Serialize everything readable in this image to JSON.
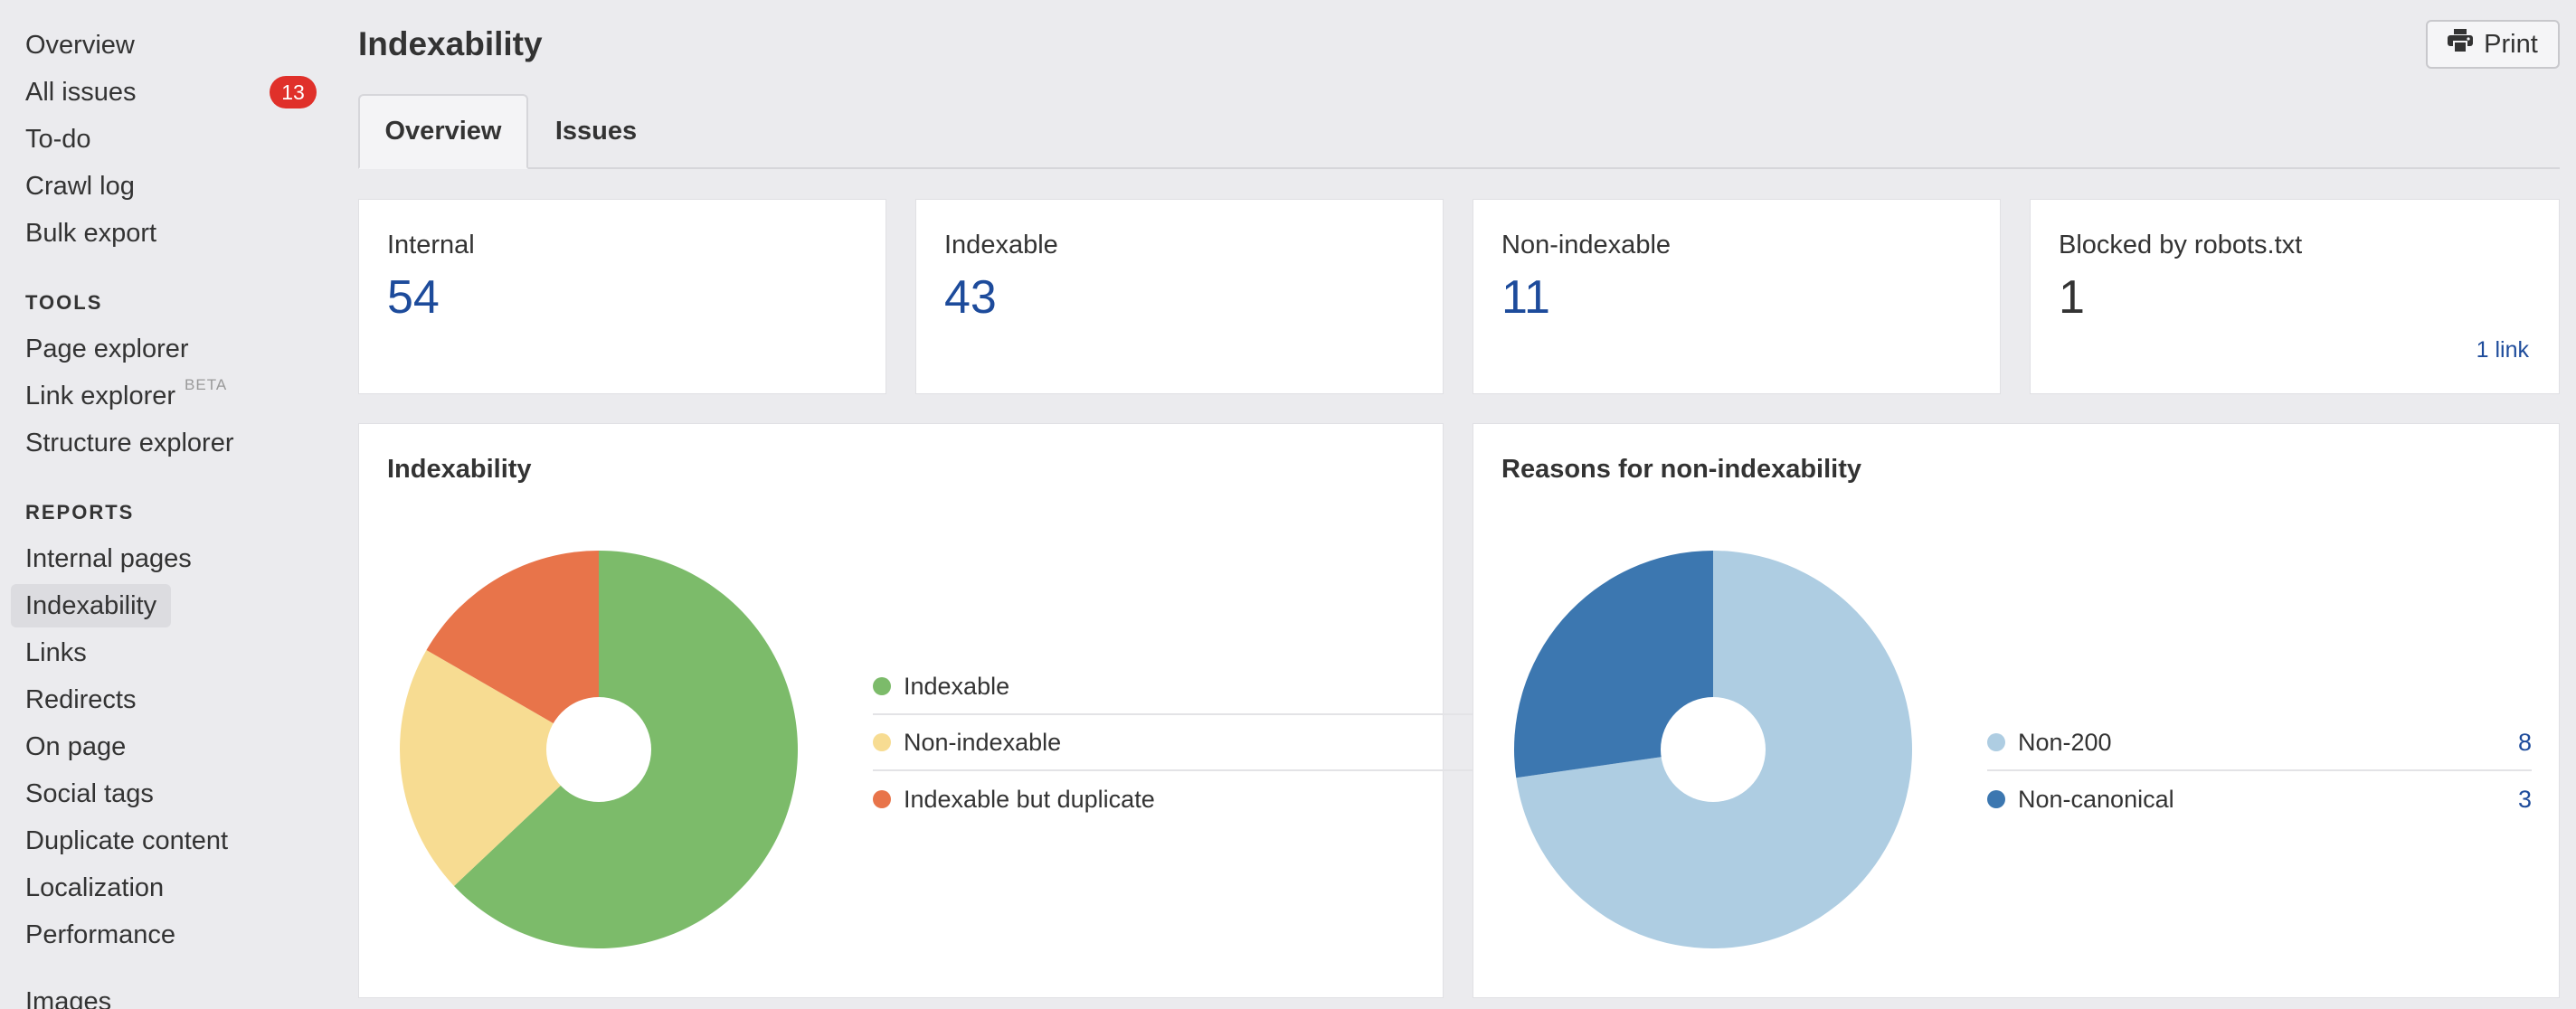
{
  "sidebar": {
    "top_items": [
      {
        "label": "Overview"
      },
      {
        "label": "All issues",
        "badge": "13"
      },
      {
        "label": "To-do"
      },
      {
        "label": "Crawl log"
      },
      {
        "label": "Bulk export"
      }
    ],
    "tools_header": "TOOLS",
    "tools": [
      {
        "label": "Page explorer"
      },
      {
        "label": "Link explorer",
        "tag": "BETA"
      },
      {
        "label": "Structure explorer"
      }
    ],
    "reports_header": "REPORTS",
    "reports": [
      {
        "label": "Internal pages"
      },
      {
        "label": "Indexability"
      },
      {
        "label": "Links"
      },
      {
        "label": "Redirects"
      },
      {
        "label": "On page"
      },
      {
        "label": "Social tags"
      },
      {
        "label": "Duplicate content"
      },
      {
        "label": "Localization"
      },
      {
        "label": "Performance"
      },
      {
        "label": "Images"
      }
    ]
  },
  "header": {
    "title": "Indexability",
    "print_label": "Print"
  },
  "tabs": [
    {
      "label": "Overview",
      "active": true
    },
    {
      "label": "Issues",
      "active": false
    }
  ],
  "stats": [
    {
      "label": "Internal",
      "value": "54"
    },
    {
      "label": "Indexable",
      "value": "43"
    },
    {
      "label": "Non-indexable",
      "value": "11"
    },
    {
      "label": "Blocked by robots.txt",
      "value": "1",
      "link": "1 link"
    }
  ],
  "colors": {
    "indexable": "#7cbb6a",
    "non_indexable": "#f7dc92",
    "indexable_duplicate": "#e8744a",
    "non_200": "#aecde2",
    "non_canonical": "#3c77b0",
    "link_blue": "#1d4b9b",
    "badge_red": "#e0302a"
  },
  "chart_data": [
    {
      "type": "pie",
      "title": "Indexability",
      "categories": [
        "Indexable",
        "Non-indexable",
        "Indexable but duplicate"
      ],
      "values": [
        34,
        11,
        9
      ]
    },
    {
      "type": "pie",
      "title": "Reasons for non-indexability",
      "categories": [
        "Non-200",
        "Non-canonical"
      ],
      "values": [
        8,
        3
      ]
    }
  ]
}
